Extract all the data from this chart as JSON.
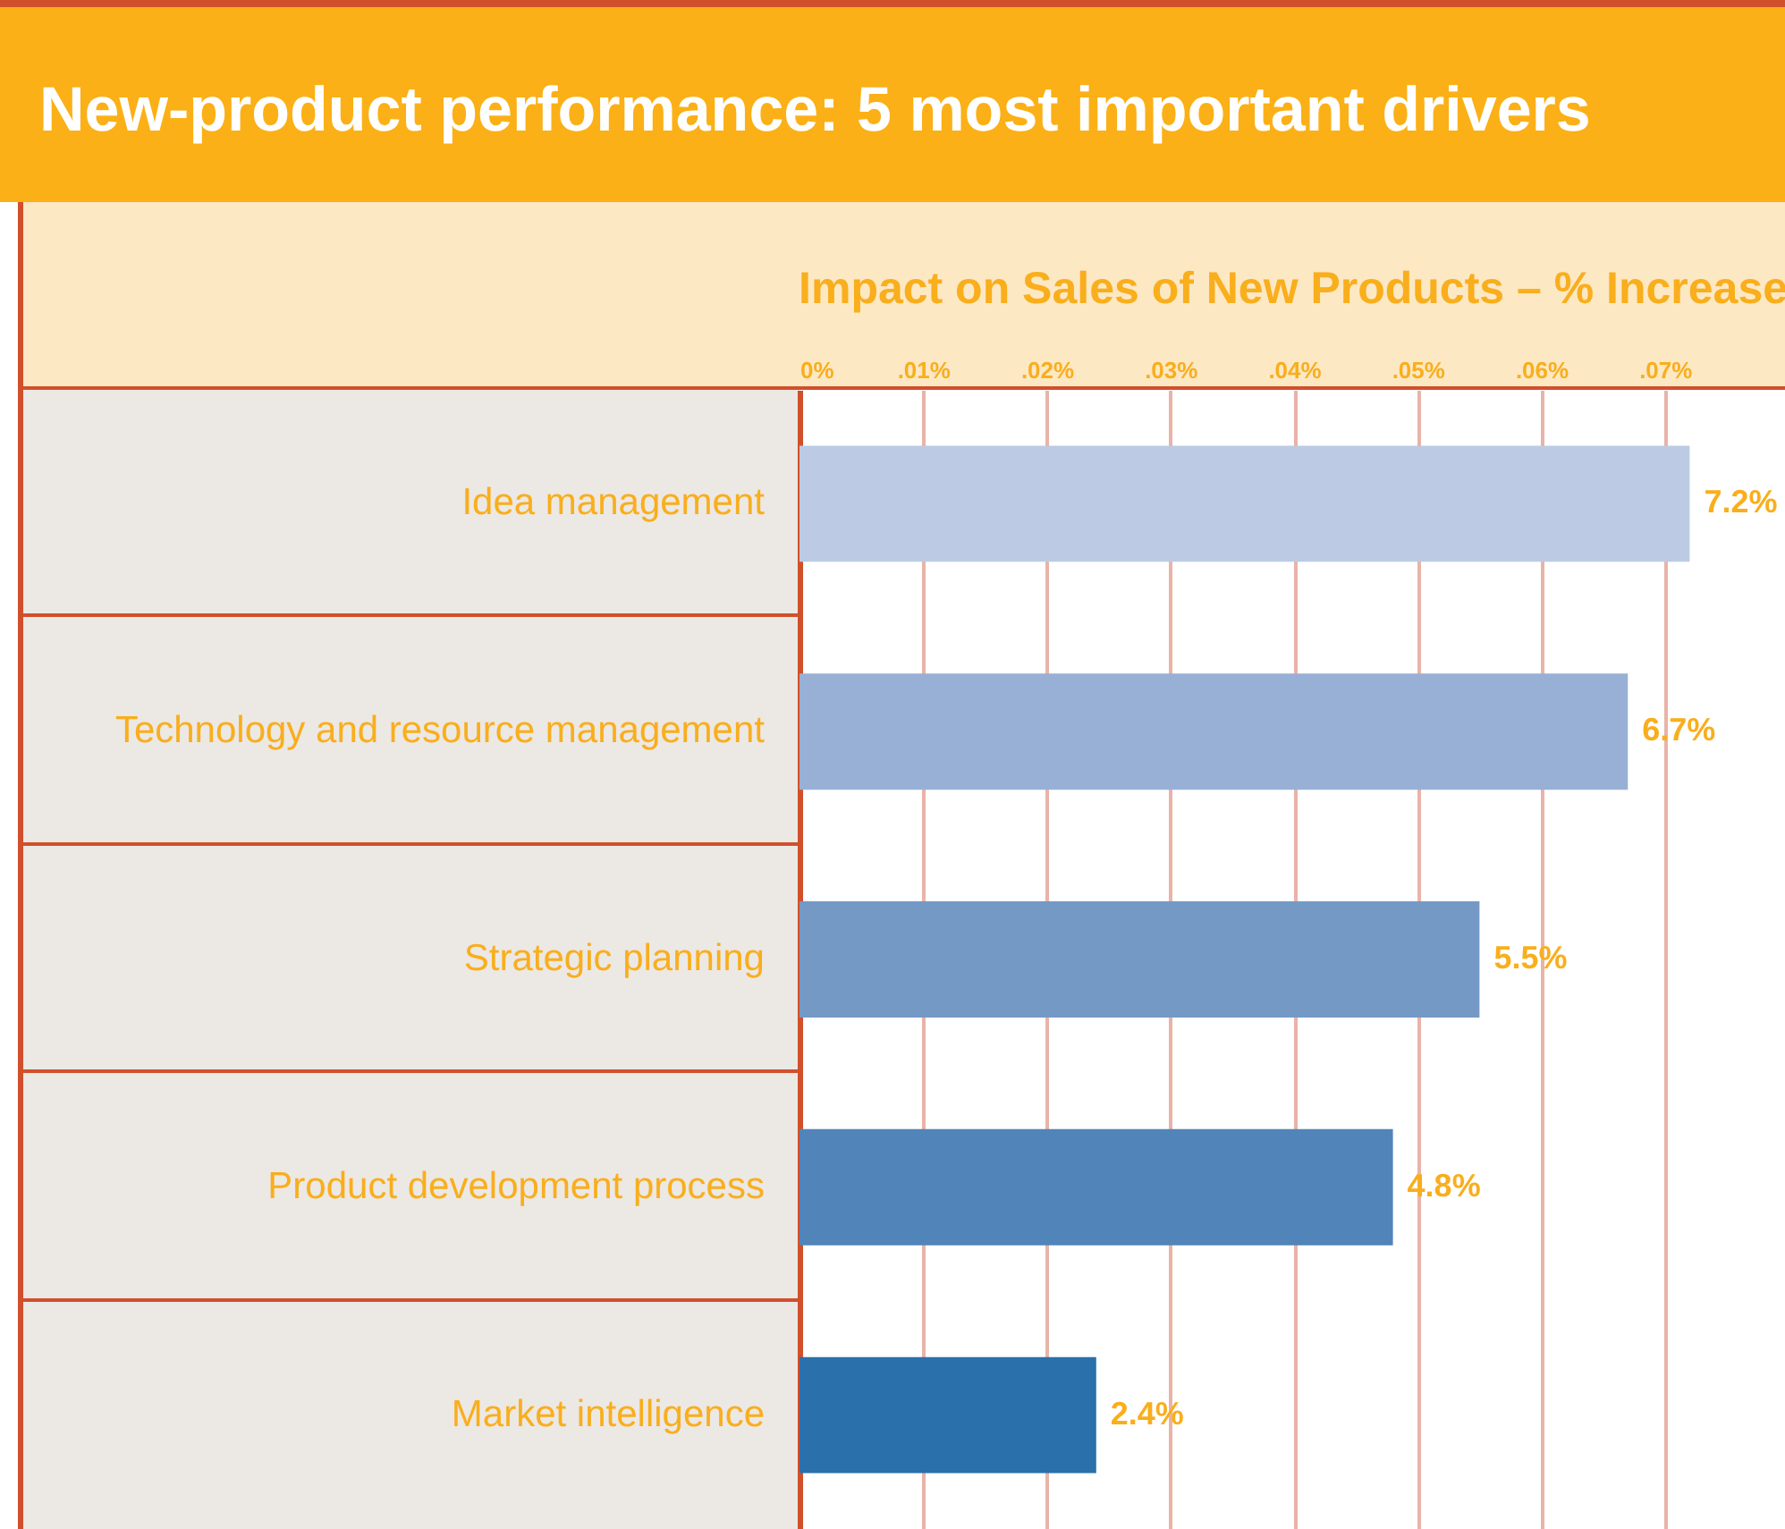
{
  "chart_data": {
    "type": "bar",
    "orientation": "horizontal",
    "title": "New-product performance: 5 most important drivers",
    "xlabel": "Impact on Sales of New Products – % Increase",
    "categories": [
      "Idea management",
      "Technology and resource management",
      "Strategic planning",
      "Product development process",
      "Market intelligence"
    ],
    "values": [
      0.072,
      0.067,
      0.055,
      0.048,
      0.024
    ],
    "colors": [
      "#bccbe3",
      "#98b0d5",
      "#7499c5",
      "#5184b9",
      "#2a70aa"
    ],
    "value_labels": [
      "7.2%",
      "6.7%",
      "5.5%",
      "4.8%",
      "2.4%"
    ],
    "xlim": [
      0,
      0.08
    ],
    "xticks": [
      {
        "value": 0,
        "label": "0%"
      },
      {
        "value": 0.01,
        "label": ".01%"
      },
      {
        "value": 0.02,
        "label": ".02%"
      },
      {
        "value": 0.03,
        "label": ".03%"
      },
      {
        "value": 0.04,
        "label": ".04%"
      },
      {
        "value": 0.05,
        "label": ".05%"
      },
      {
        "value": 0.06,
        "label": ".06%"
      },
      {
        "value": 0.07,
        "label": ".07%"
      }
    ],
    "grid": "x"
  }
}
